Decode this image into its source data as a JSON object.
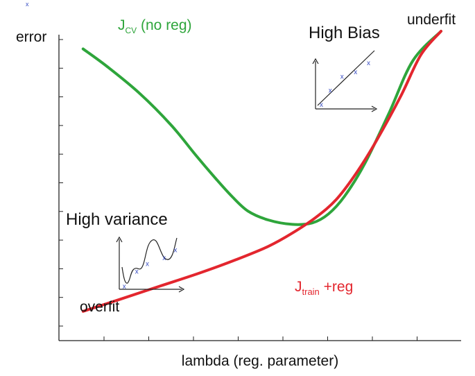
{
  "chart_data": {
    "type": "line",
    "xlabel": "lambda (reg. parameter)",
    "ylabel": "error",
    "grid": false,
    "series": [
      {
        "name_main": "J",
        "name_sub": "CV",
        "name_suffix": " (no reg)",
        "color": "#2ea53b",
        "points": [
          [
            0.06,
            0.94
          ],
          [
            0.12,
            0.88
          ],
          [
            0.2,
            0.79
          ],
          [
            0.28,
            0.68
          ],
          [
            0.34,
            0.58
          ],
          [
            0.39,
            0.5
          ],
          [
            0.43,
            0.44
          ],
          [
            0.47,
            0.39
          ],
          [
            0.52,
            0.36
          ],
          [
            0.58,
            0.345
          ],
          [
            0.63,
            0.35
          ],
          [
            0.67,
            0.38
          ],
          [
            0.71,
            0.44
          ],
          [
            0.76,
            0.55
          ],
          [
            0.82,
            0.72
          ],
          [
            0.88,
            0.9
          ],
          [
            0.95,
            1.0
          ]
        ]
      },
      {
        "name_main": "J",
        "name_sub": "train",
        "name_suffix": " +reg",
        "color": "#e3262e",
        "points": [
          [
            0.06,
            0.05
          ],
          [
            0.15,
            0.09
          ],
          [
            0.25,
            0.135
          ],
          [
            0.35,
            0.18
          ],
          [
            0.44,
            0.225
          ],
          [
            0.52,
            0.27
          ],
          [
            0.58,
            0.315
          ],
          [
            0.64,
            0.37
          ],
          [
            0.69,
            0.43
          ],
          [
            0.74,
            0.52
          ],
          [
            0.79,
            0.63
          ],
          [
            0.85,
            0.78
          ],
          [
            0.9,
            0.92
          ],
          [
            0.95,
            1.0
          ]
        ]
      }
    ],
    "annotations": {
      "overfit": "overfit",
      "underfit": "underfit",
      "high_variance": "High variance",
      "high_bias": "High Bias",
      "x_marker": "x"
    },
    "inset_variance": {
      "points": [
        [
          0.08,
          0.05
        ],
        [
          0.28,
          0.35
        ],
        [
          0.45,
          0.5
        ],
        [
          0.72,
          0.62
        ],
        [
          0.9,
          0.78
        ]
      ]
    },
    "inset_bias": {
      "points": [
        [
          0.1,
          0.08
        ],
        [
          0.25,
          0.38
        ],
        [
          0.45,
          0.67
        ],
        [
          0.68,
          0.76
        ],
        [
          0.9,
          0.95
        ]
      ]
    }
  }
}
